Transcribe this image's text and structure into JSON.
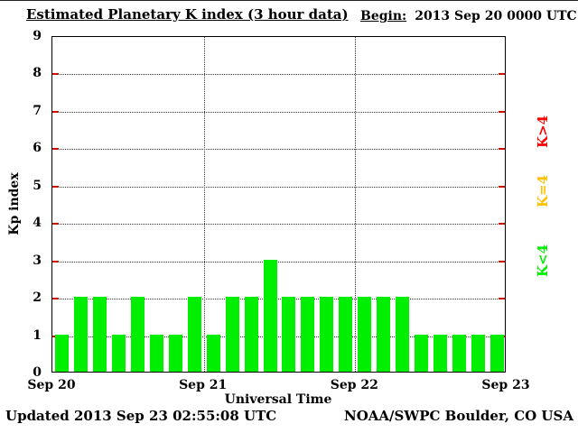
{
  "header": {
    "title": "Estimated Planetary K index (3 hour data)",
    "begin_label": "Begin:",
    "begin_value": "2013 Sep 20 0000 UTC"
  },
  "chart_data": {
    "type": "bar",
    "title": "Estimated Planetary K index (3 hour data)",
    "xlabel": "Universal Time",
    "ylabel": "Kp index",
    "ylim": [
      0,
      9
    ],
    "yticks": [
      0,
      1,
      2,
      3,
      4,
      5,
      6,
      7,
      8,
      9
    ],
    "x_tick_labels": [
      "Sep 20",
      "Sep 21",
      "Sep 22",
      "Sep 23"
    ],
    "interval_hours": 3,
    "values": [
      1,
      2,
      2,
      1,
      2,
      1,
      1,
      2,
      1,
      2,
      2,
      3,
      2,
      2,
      2,
      2,
      2,
      2,
      2,
      1,
      1,
      1,
      1,
      1
    ],
    "bar_color": "#00ee00",
    "tick_color": "#cc1100",
    "grid": {
      "horizontal_dotted_at": [
        1,
        2,
        3,
        4,
        5,
        6,
        7,
        8
      ],
      "vertical_dotted_at_days": [
        1,
        2
      ]
    }
  },
  "legend": {
    "items": [
      {
        "label": "K>4",
        "color": "#ff0000"
      },
      {
        "label": "K=4",
        "color": "#ffc000"
      },
      {
        "label": "K<4",
        "color": "#00ee00"
      }
    ]
  },
  "footer": {
    "updated": "Updated 2013 Sep 23 02:55:08 UTC",
    "source": "NOAA/SWPC Boulder, CO USA"
  }
}
